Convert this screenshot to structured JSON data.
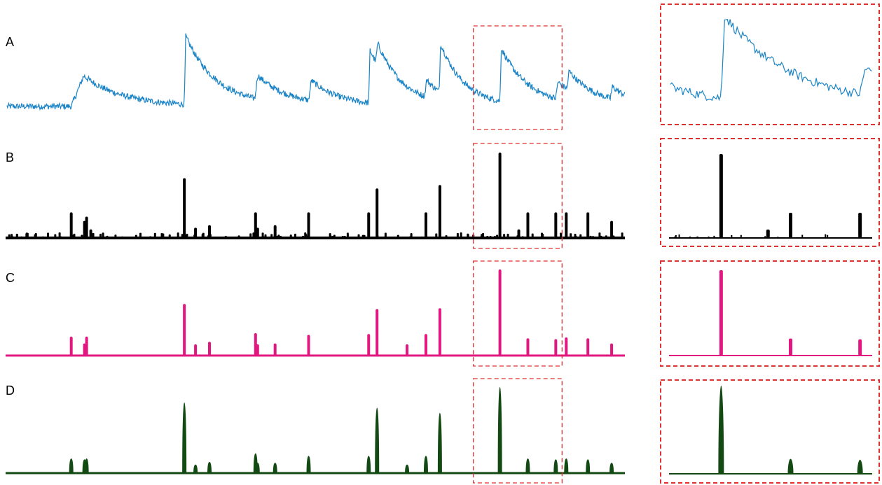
{
  "figure": {
    "colors": {
      "zoom_box": "#e03030",
      "panel_a": "#1b84c6",
      "panel_b": "#000000",
      "panel_c": "#e2177f",
      "panel_d": "#134a13"
    }
  },
  "chart_data": [
    {
      "type": "line",
      "panel": "A",
      "label": "A",
      "description_of_shape": "noisy fluorescence trace with transient rises and exponential decays",
      "color": "#1b84c6",
      "x_range": [
        0,
        885
      ],
      "baseline": 0,
      "events": [
        {
          "x": 92,
          "amplitude": 0.45,
          "rise": 18,
          "tau": 55
        },
        {
          "x": 254,
          "amplitude": 1.0,
          "rise": 2,
          "tau": 45
        },
        {
          "x": 355,
          "amplitude": 0.35,
          "rise": 4,
          "tau": 45
        },
        {
          "x": 432,
          "amplitude": 0.3,
          "rise": 4,
          "tau": 40
        },
        {
          "x": 518,
          "amplitude": 0.78,
          "rise": 2,
          "tau": 35
        },
        {
          "x": 528,
          "amplitude": 0.32,
          "rise": 3,
          "tau": 40
        },
        {
          "x": 598,
          "amplitude": 0.25,
          "rise": 3,
          "tau": 30
        },
        {
          "x": 619,
          "amplitude": 0.72,
          "rise": 2,
          "tau": 35
        },
        {
          "x": 706,
          "amplitude": 0.78,
          "rise": 2,
          "tau": 40
        },
        {
          "x": 786,
          "amplitude": 0.25,
          "rise": 3,
          "tau": 40
        },
        {
          "x": 802,
          "amplitude": 0.28,
          "rise": 3,
          "tau": 40
        },
        {
          "x": 864,
          "amplitude": 0.18,
          "rise": 3,
          "tau": 30
        }
      ],
      "zoom_window_x": [
        676,
        793
      ]
    },
    {
      "type": "bar",
      "panel": "B",
      "label": "B",
      "color": "#000000",
      "x": [
        92,
        111,
        114,
        120,
        254,
        270,
        290,
        356,
        359,
        384,
        432,
        518,
        530,
        600,
        620,
        706,
        733,
        746,
        786,
        801,
        832,
        866
      ],
      "values": [
        0.3,
        0.2,
        0.25,
        0.1,
        0.7,
        0.12,
        0.15,
        0.3,
        0.12,
        0.15,
        0.3,
        0.3,
        0.58,
        0.3,
        0.62,
        1.0,
        0.1,
        0.3,
        0.3,
        0.3,
        0.3,
        0.2
      ],
      "ylim": [
        0,
        1
      ],
      "zoom_window_x": [
        676,
        793
      ]
    },
    {
      "type": "bar",
      "panel": "C",
      "label": "C",
      "color": "#e2177f",
      "x": [
        92,
        111,
        114,
        254,
        270,
        290,
        356,
        359,
        384,
        432,
        518,
        530,
        573,
        600,
        620,
        706,
        746,
        786,
        801,
        832,
        866
      ],
      "values": [
        0.22,
        0.14,
        0.22,
        0.6,
        0.13,
        0.16,
        0.26,
        0.13,
        0.14,
        0.24,
        0.25,
        0.54,
        0.13,
        0.25,
        0.55,
        1.0,
        0.2,
        0.19,
        0.21,
        0.2,
        0.14
      ],
      "ylim": [
        0,
        1
      ],
      "zoom_window_x": [
        676,
        793
      ]
    },
    {
      "type": "bar",
      "panel": "D",
      "label": "D",
      "color": "#134a13",
      "x": [
        92,
        111,
        114,
        254,
        270,
        290,
        356,
        359,
        384,
        432,
        518,
        530,
        573,
        600,
        620,
        706,
        746,
        786,
        801,
        832,
        866
      ],
      "values": [
        0.17,
        0.16,
        0.17,
        0.82,
        0.1,
        0.13,
        0.23,
        0.12,
        0.12,
        0.2,
        0.2,
        0.76,
        0.1,
        0.2,
        0.7,
        1.0,
        0.17,
        0.16,
        0.17,
        0.16,
        0.12
      ],
      "ylim": [
        0,
        1
      ],
      "zoom_window_x": [
        676,
        793
      ]
    }
  ]
}
